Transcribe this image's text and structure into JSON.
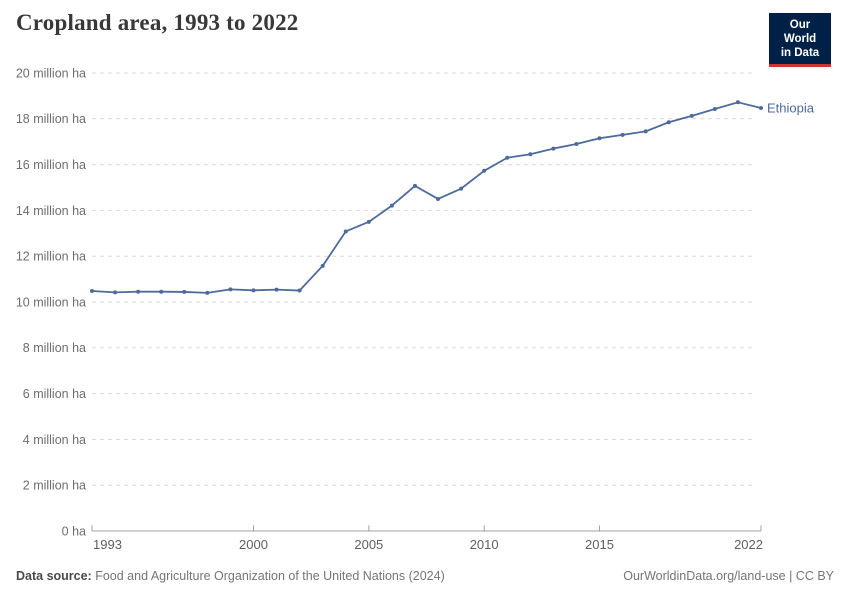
{
  "header": {
    "title": "Cropland area, 1993 to 2022",
    "logo": {
      "line1": "Our World",
      "line2": "in Data"
    }
  },
  "chart_data": {
    "type": "line",
    "title": "Cropland area, 1993 to 2022",
    "unit": "million ha",
    "xlim": [
      1993,
      2022
    ],
    "ylim": [
      0,
      20
    ],
    "grid": "horizontal dashed",
    "legend_position": "line-end label",
    "xticks": [
      "1993",
      "2000",
      "2005",
      "2010",
      "2015",
      "2022"
    ],
    "yticks": [
      {
        "value": 0,
        "label": "0 ha"
      },
      {
        "value": 2,
        "label": "2 million ha"
      },
      {
        "value": 4,
        "label": "4 million ha"
      },
      {
        "value": 6,
        "label": "6 million ha"
      },
      {
        "value": 8,
        "label": "8 million ha"
      },
      {
        "value": 10,
        "label": "10 million ha"
      },
      {
        "value": 12,
        "label": "12 million ha"
      },
      {
        "value": 14,
        "label": "14 million ha"
      },
      {
        "value": 16,
        "label": "16 million ha"
      },
      {
        "value": 18,
        "label": "18 million ha"
      },
      {
        "value": 20,
        "label": "20 million ha"
      }
    ],
    "series": [
      {
        "name": "Ethiopia",
        "x": [
          1993,
          1994,
          1995,
          1996,
          1997,
          1998,
          1999,
          2000,
          2001,
          2002,
          2003,
          2004,
          2005,
          2006,
          2007,
          2008,
          2009,
          2010,
          2011,
          2012,
          2013,
          2014,
          2015,
          2016,
          2017,
          2018,
          2019,
          2020,
          2021,
          2022
        ],
        "values": [
          10.48,
          10.42,
          10.45,
          10.45,
          10.44,
          10.4,
          10.55,
          10.51,
          10.54,
          10.5,
          11.58,
          13.08,
          13.5,
          14.21,
          15.07,
          14.5,
          14.95,
          15.73,
          16.3,
          16.45,
          16.7,
          16.9,
          17.15,
          17.3,
          17.45,
          17.85,
          18.13,
          18.43,
          18.72,
          18.47
        ]
      }
    ]
  },
  "footer": {
    "source_label": "Data source:",
    "source_text": "Food and Agriculture Organization of the United Nations (2024)",
    "credit": "OurWorldinData.org/land-use | CC BY"
  },
  "colors": {
    "line": "#4C6A9C",
    "series_label": "#4C6A9C",
    "gridline": "#dadada",
    "axis": "#a0a0a0",
    "y_tick_text": "#6e6e6e",
    "x_tick_text": "#5f5f5f",
    "logo_bg": "#002147",
    "logo_accent": "#d0342c"
  }
}
